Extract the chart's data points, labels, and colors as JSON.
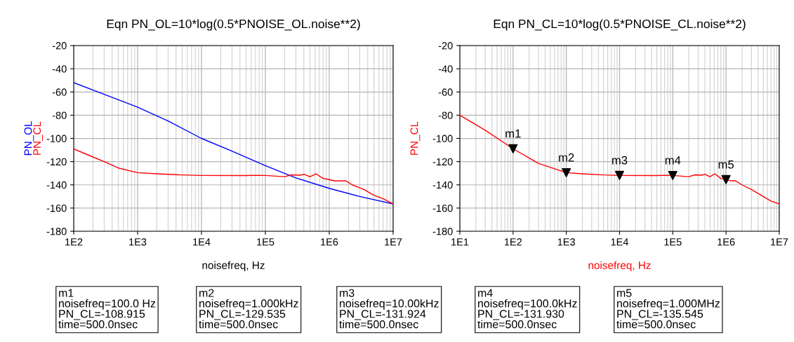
{
  "chart_data": [
    {
      "type": "line",
      "title": "Eqn PN_OL=10*log(0.5*PNOISE_OL.noise**2)",
      "xlabel": "noisefreq, Hz",
      "log": "x",
      "grid": true,
      "legend": false,
      "xlim": [
        100,
        10000000
      ],
      "xticks": [
        {
          "value": 100,
          "label": "1E2"
        },
        {
          "value": 1000,
          "label": "1E3"
        },
        {
          "value": 10000,
          "label": "1E4"
        },
        {
          "value": 100000,
          "label": "1E5"
        },
        {
          "value": 1000000,
          "label": "1E6"
        },
        {
          "value": 10000000,
          "label": "1E7"
        }
      ],
      "ylim": [
        -180,
        -20
      ],
      "yticks": [
        -180,
        -160,
        -140,
        -120,
        -100,
        -80,
        -60,
        -40,
        -20
      ],
      "series": [
        {
          "name": "PN_OL",
          "color": "#0000ff",
          "x": [
            100,
            300,
            1000,
            3000,
            10000,
            30000,
            100000,
            300000,
            1000000,
            3000000,
            10000000
          ],
          "values": [
            -52,
            -62,
            -73,
            -85,
            -100,
            -111,
            -123.5,
            -134,
            -143,
            -150,
            -156.5
          ]
        },
        {
          "name": "PN_CL",
          "color": "#ff0000",
          "x": [
            100,
            200,
            300,
            500,
            1000,
            2000,
            5000,
            10000,
            50000,
            70000,
            100000,
            200000,
            260000,
            350000,
            400000,
            500000,
            620000,
            800000,
            1000000,
            1200000,
            1800000,
            2300000,
            3500000,
            5000000,
            7000000,
            10000000
          ],
          "values": [
            -109,
            -116,
            -120,
            -125.5,
            -129.5,
            -130.5,
            -131.5,
            -131.9,
            -132,
            -131.8,
            -131.9,
            -133,
            -131.4,
            -131.7,
            -130.9,
            -133,
            -130.5,
            -134.5,
            -135.5,
            -136.5,
            -136.5,
            -140,
            -144,
            -149,
            -152,
            -156.5
          ]
        }
      ]
    },
    {
      "type": "line",
      "title": "Eqn PN_CL=10*log(0.5*PNOISE_CL.noise**2)",
      "xlabel": "noisefreq, Hz",
      "log": "x",
      "grid": true,
      "legend": false,
      "xlim": [
        10,
        10000000
      ],
      "xticks": [
        {
          "value": 10,
          "label": "1E1"
        },
        {
          "value": 100,
          "label": "1E2"
        },
        {
          "value": 1000,
          "label": "1E3"
        },
        {
          "value": 10000,
          "label": "1E4"
        },
        {
          "value": 100000,
          "label": "1E5"
        },
        {
          "value": 1000000,
          "label": "1E6"
        },
        {
          "value": 10000000,
          "label": "1E7"
        }
      ],
      "ylim": [
        -180,
        -20
      ],
      "yticks": [
        -180,
        -160,
        -140,
        -120,
        -100,
        -80,
        -60,
        -40,
        -20
      ],
      "series": [
        {
          "name": "PN_CL",
          "color": "#ff0000",
          "x": [
            10,
            30,
            100,
            300,
            1000,
            2000,
            5000,
            10000,
            50000,
            70000,
            100000,
            200000,
            260000,
            350000,
            400000,
            500000,
            620000,
            800000,
            1000000,
            1200000,
            1500000,
            2000000,
            3000000,
            5000000,
            7000000,
            10000000
          ],
          "values": [
            -80,
            -93,
            -108.915,
            -121.5,
            -129.535,
            -130.5,
            -131.5,
            -131.924,
            -132,
            -131.8,
            -131.93,
            -133,
            -131.4,
            -131.7,
            -130.9,
            -133,
            -130.5,
            -134.5,
            -135.545,
            -136.5,
            -136.5,
            -140,
            -144,
            -150,
            -154,
            -156.5
          ]
        },
        {
          "type": "scatter",
          "color": "#000000",
          "marker": "triangle",
          "x": [
            100,
            1000,
            10000,
            100000,
            1000000
          ],
          "values": [
            -108.915,
            -129.535,
            -131.924,
            -131.93,
            -135.545
          ]
        }
      ],
      "annotations": [
        {
          "text": "m1",
          "x": 100,
          "y": -108.915
        },
        {
          "text": "m2",
          "x": 1000,
          "y": -129.535
        },
        {
          "text": "m3",
          "x": 10000,
          "y": -131.924
        },
        {
          "text": "m4",
          "x": 100000,
          "y": -131.93
        },
        {
          "text": "m5",
          "x": 1000000,
          "y": -135.545
        },
        "m1\nnoisefreq=100.0 Hz\nPN_CL=-108.915\ntime=500.0nsec",
        "m2\nnoisefreq=1.000kHz\nPN_CL=-129.535\ntime=500.0nsec",
        "m3\nnoisefreq=10.00kHz\nPN_CL=-131.924\ntime=500.0nsec",
        "m4\nnoisefreq=100.0kHz\nPN_CL=-131.930\ntime=500.0nsec",
        "m5\nnoisefreq=1.000MHz\nPN_CL=-135.545\ntime=500.0nsec"
      ]
    }
  ]
}
